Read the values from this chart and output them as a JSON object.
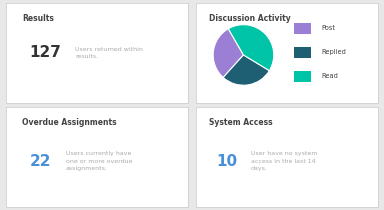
{
  "bg_color": "#e8e8e8",
  "card_bg": "#ffffff",
  "card_border": "#d0d0d0",
  "results_title": "Results",
  "results_number": "127",
  "results_text": "Users returned within\nresults.",
  "results_number_color": "#333333",
  "results_text_color": "#aaaaaa",
  "discussion_title": "Discussion Activity",
  "pie_values": [
    30,
    28,
    42
  ],
  "pie_colors": [
    "#9b7fd4",
    "#1e5f74",
    "#00c4a7"
  ],
  "pie_labels": [
    "Post",
    "Replied",
    "Read"
  ],
  "overdue_title": "Overdue Assignments",
  "overdue_number": "22",
  "overdue_text": "Users currently have\none or more overdue\nassignments.",
  "overdue_number_color": "#4a90d9",
  "system_title": "System Access",
  "system_number": "10",
  "system_text": "User have no system\naccess in the last 14\ndays.",
  "system_number_color": "#4a90d9",
  "title_color": "#444444",
  "text_color": "#aaaaaa"
}
